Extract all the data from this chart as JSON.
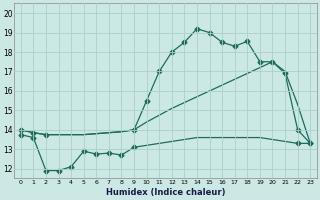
{
  "xlabel": "Humidex (Indice chaleur)",
  "bg_color": "#cce8e4",
  "line_color": "#1e6b5e",
  "grid_color": "#aacfca",
  "xlim": [
    -0.5,
    23.5
  ],
  "ylim": [
    11.5,
    20.5
  ],
  "xticks": [
    0,
    1,
    2,
    3,
    4,
    5,
    6,
    7,
    8,
    9,
    10,
    11,
    12,
    13,
    14,
    15,
    16,
    17,
    18,
    19,
    20,
    21,
    22,
    23
  ],
  "yticks": [
    12,
    13,
    14,
    15,
    16,
    17,
    18,
    19,
    20
  ],
  "line1_x": [
    0,
    1,
    2,
    3,
    4,
    5,
    6,
    7,
    8,
    9,
    10,
    11,
    12,
    13,
    14,
    15,
    16,
    17,
    18,
    19,
    20,
    21,
    22,
    23
  ],
  "line1_y": [
    14.0,
    13.85,
    13.75,
    13.75,
    13.75,
    13.75,
    13.8,
    13.85,
    13.9,
    14.0,
    15.5,
    17.0,
    18.0,
    18.5,
    19.2,
    19.0,
    18.5,
    18.3,
    18.55,
    17.5,
    17.5,
    16.9,
    14.0,
    13.3
  ],
  "line1_markers_x": [
    0,
    1,
    2,
    9,
    10,
    11,
    12,
    13,
    14,
    15,
    16,
    17,
    18,
    19,
    20,
    21,
    22,
    23
  ],
  "line1_markers_y": [
    14.0,
    13.85,
    13.75,
    14.0,
    15.5,
    17.0,
    18.0,
    18.5,
    19.2,
    19.0,
    18.5,
    18.3,
    18.55,
    17.5,
    17.5,
    16.9,
    14.0,
    13.3
  ],
  "line2_x": [
    0,
    1,
    2,
    3,
    4,
    5,
    6,
    7,
    8,
    9,
    10,
    11,
    12,
    13,
    14,
    15,
    16,
    17,
    18,
    19,
    20,
    21,
    22,
    23
  ],
  "line2_y": [
    14.0,
    13.85,
    13.75,
    13.75,
    13.75,
    13.75,
    13.8,
    13.85,
    13.9,
    14.0,
    14.4,
    14.75,
    15.1,
    15.4,
    15.7,
    16.0,
    16.3,
    16.6,
    16.9,
    17.2,
    17.5,
    17.0,
    15.3,
    13.3
  ],
  "line3_x": [
    0,
    1,
    2,
    3,
    4,
    5,
    6,
    7,
    8,
    9,
    10,
    11,
    12,
    13,
    14,
    15,
    16,
    17,
    18,
    19,
    20,
    21,
    22,
    23
  ],
  "line3_y": [
    13.75,
    13.6,
    11.9,
    11.9,
    12.1,
    12.9,
    12.75,
    12.8,
    12.7,
    13.1,
    13.2,
    13.3,
    13.4,
    13.5,
    13.6,
    13.6,
    13.6,
    13.6,
    13.6,
    13.6,
    13.5,
    13.4,
    13.3,
    13.3
  ],
  "line3_markers_x": [
    0,
    1,
    2,
    3,
    4,
    5,
    6,
    7,
    8,
    9,
    22,
    23
  ],
  "line3_markers_y": [
    13.75,
    13.6,
    11.9,
    11.9,
    12.1,
    12.9,
    12.75,
    12.8,
    12.7,
    13.1,
    13.3,
    13.3
  ]
}
